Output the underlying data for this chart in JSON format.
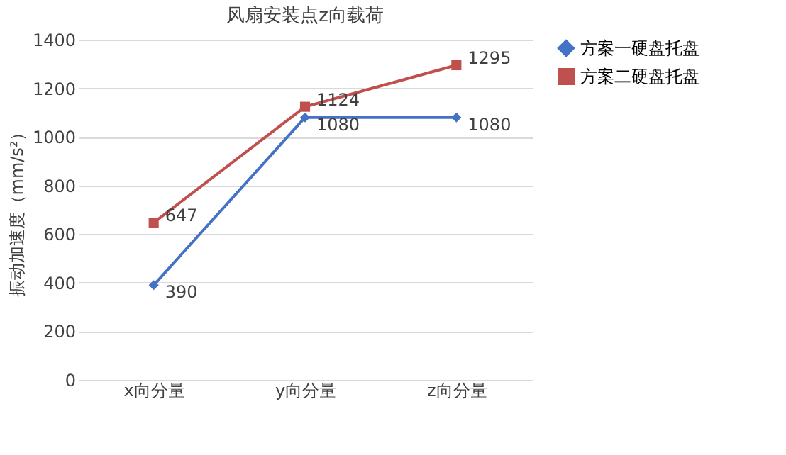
{
  "chart_data": {
    "type": "line",
    "title": "风扇安装点z向载荷",
    "ylabel": "振动加速度（mm/s²）",
    "categories": [
      "x向分量",
      "y向分量",
      "z向分量"
    ],
    "series": [
      {
        "name": "方案一硬盘托盘",
        "color": "#4472c4",
        "marker": "diamond",
        "values": [
          390,
          1080,
          1080
        ]
      },
      {
        "name": "方案二硬盘托盘",
        "color": "#c0504d",
        "marker": "square",
        "values": [
          647,
          1124,
          1295
        ]
      }
    ],
    "ylim": [
      0,
      1400
    ],
    "yticks": [
      0,
      200,
      400,
      600,
      800,
      1000,
      1200,
      1400
    ],
    "grid": "y",
    "legend": "right",
    "data_labels": true
  }
}
